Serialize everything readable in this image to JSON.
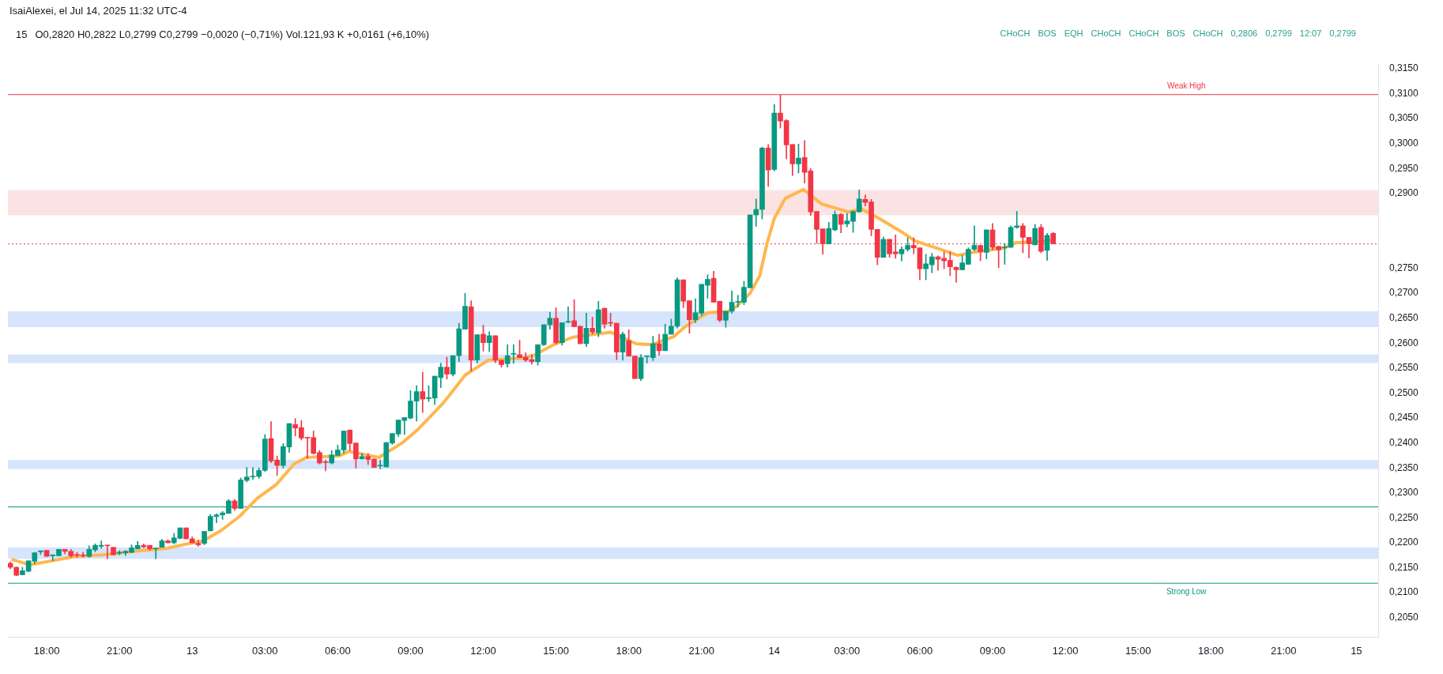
{
  "chart_data": {
    "type": "candlestick",
    "title": "15",
    "subtitle": "O0,2820 H0,2822 L0,2799 C0,2799 −0,0020 (−0,71%) Vol.121,93 K +0,0161 (+6,10%)",
    "x": [
      "2025-07-12T16:30",
      "2025-07-12T16:45",
      "2025-07-12T17:00",
      "2025-07-12T17:15",
      "2025-07-12T17:30",
      "2025-07-12T17:45",
      "2025-07-12T18:00",
      "2025-07-12T18:15",
      "2025-07-12T18:30",
      "2025-07-12T18:45",
      "2025-07-12T19:00",
      "2025-07-12T19:15",
      "2025-07-12T19:30",
      "2025-07-12T19:45",
      "2025-07-12T20:00",
      "2025-07-12T20:15",
      "2025-07-12T20:30",
      "2025-07-12T20:45",
      "2025-07-12T21:00",
      "2025-07-12T21:15",
      "2025-07-12T21:30",
      "2025-07-12T21:45",
      "2025-07-12T22:00",
      "2025-07-12T22:15",
      "2025-07-12T22:30",
      "2025-07-12T22:45",
      "2025-07-12T23:00",
      "2025-07-12T23:15",
      "2025-07-12T23:30",
      "2025-07-12T23:45",
      "2025-07-13T00:00",
      "2025-07-13T00:15",
      "2025-07-13T00:30",
      "2025-07-13T00:45",
      "2025-07-13T01:00",
      "2025-07-13T01:15",
      "2025-07-13T01:30",
      "2025-07-13T01:45",
      "2025-07-13T02:00",
      "2025-07-13T02:15",
      "2025-07-13T02:30",
      "2025-07-13T02:45",
      "2025-07-13T03:00",
      "2025-07-13T03:15",
      "2025-07-13T03:30",
      "2025-07-13T03:45",
      "2025-07-13T04:00",
      "2025-07-13T04:15",
      "2025-07-13T04:30",
      "2025-07-13T04:45",
      "2025-07-13T05:00",
      "2025-07-13T05:15",
      "2025-07-13T05:30",
      "2025-07-13T05:45",
      "2025-07-13T06:00",
      "2025-07-13T06:15",
      "2025-07-13T06:30",
      "2025-07-13T06:45",
      "2025-07-13T07:00",
      "2025-07-13T07:15",
      "2025-07-13T07:30",
      "2025-07-13T07:45",
      "2025-07-13T08:00",
      "2025-07-13T08:15",
      "2025-07-13T08:30",
      "2025-07-13T08:45",
      "2025-07-13T09:00",
      "2025-07-13T09:15",
      "2025-07-13T09:30",
      "2025-07-13T09:45",
      "2025-07-13T10:00",
      "2025-07-13T10:15",
      "2025-07-13T10:30",
      "2025-07-13T10:45",
      "2025-07-13T11:00",
      "2025-07-13T11:15",
      "2025-07-13T11:30",
      "2025-07-13T11:45",
      "2025-07-13T12:00",
      "2025-07-13T12:15",
      "2025-07-13T12:30",
      "2025-07-13T12:45",
      "2025-07-13T13:00",
      "2025-07-13T13:15",
      "2025-07-13T13:30",
      "2025-07-13T13:45",
      "2025-07-13T14:00",
      "2025-07-13T14:15",
      "2025-07-13T14:30",
      "2025-07-13T14:45",
      "2025-07-13T15:00",
      "2025-07-13T15:15",
      "2025-07-13T15:30",
      "2025-07-13T15:45",
      "2025-07-13T16:00",
      "2025-07-13T16:15",
      "2025-07-13T16:30",
      "2025-07-13T16:45",
      "2025-07-13T17:00",
      "2025-07-13T17:15",
      "2025-07-13T17:30",
      "2025-07-13T17:45",
      "2025-07-13T18:00",
      "2025-07-13T18:15",
      "2025-07-13T18:30",
      "2025-07-13T18:45",
      "2025-07-13T19:00",
      "2025-07-13T19:15",
      "2025-07-13T19:30",
      "2025-07-13T19:45",
      "2025-07-13T20:00",
      "2025-07-13T20:15",
      "2025-07-13T20:30",
      "2025-07-13T20:45",
      "2025-07-13T21:00",
      "2025-07-13T21:15",
      "2025-07-13T21:30",
      "2025-07-13T21:45",
      "2025-07-13T22:00",
      "2025-07-13T22:15",
      "2025-07-13T22:30",
      "2025-07-13T22:45",
      "2025-07-13T23:00",
      "2025-07-13T23:15",
      "2025-07-13T23:30",
      "2025-07-13T23:45",
      "2025-07-14T00:00",
      "2025-07-14T00:15",
      "2025-07-14T00:30",
      "2025-07-14T00:45",
      "2025-07-14T01:00",
      "2025-07-14T01:15",
      "2025-07-14T01:30",
      "2025-07-14T01:45",
      "2025-07-14T02:00",
      "2025-07-14T02:15",
      "2025-07-14T02:30",
      "2025-07-14T02:45",
      "2025-07-14T03:00",
      "2025-07-14T03:15",
      "2025-07-14T03:30",
      "2025-07-14T03:45",
      "2025-07-14T04:00",
      "2025-07-14T04:15",
      "2025-07-14T04:30",
      "2025-07-14T04:45",
      "2025-07-14T05:00",
      "2025-07-14T05:15",
      "2025-07-14T05:30",
      "2025-07-14T05:45",
      "2025-07-14T06:00",
      "2025-07-14T06:15",
      "2025-07-14T06:30",
      "2025-07-14T06:45",
      "2025-07-14T07:00",
      "2025-07-14T07:15",
      "2025-07-14T07:30",
      "2025-07-14T07:45",
      "2025-07-14T08:00",
      "2025-07-14T08:15",
      "2025-07-14T08:30",
      "2025-07-14T08:45",
      "2025-07-14T09:00",
      "2025-07-14T09:15",
      "2025-07-14T09:30",
      "2025-07-14T09:45",
      "2025-07-14T10:00",
      "2025-07-14T10:15",
      "2025-07-14T10:30",
      "2025-07-14T10:45",
      "2025-07-14T11:00",
      "2025-07-14T11:15",
      "2025-07-14T11:30"
    ],
    "ohlc": [
      [
        0.2159,
        0.2162,
        0.2148,
        0.2151
      ],
      [
        0.2151,
        0.2152,
        0.2134,
        0.2135
      ],
      [
        0.2136,
        0.2151,
        0.2136,
        0.2144
      ],
      [
        0.2143,
        0.2164,
        0.2142,
        0.2164
      ],
      [
        0.2163,
        0.2181,
        0.2158,
        0.218
      ],
      [
        0.2182,
        0.2184,
        0.2177,
        0.2184
      ],
      [
        0.2185,
        0.2185,
        0.2173,
        0.2173
      ],
      [
        0.2174,
        0.2176,
        0.2164,
        0.2176
      ],
      [
        0.2174,
        0.2187,
        0.2174,
        0.2187
      ],
      [
        0.2187,
        0.2187,
        0.2178,
        0.2183
      ],
      [
        0.2183,
        0.2187,
        0.2171,
        0.2174
      ],
      [
        0.2176,
        0.2181,
        0.2171,
        0.2175
      ],
      [
        0.2175,
        0.2181,
        0.2171,
        0.2174
      ],
      [
        0.2173,
        0.2194,
        0.2171,
        0.2187
      ],
      [
        0.2186,
        0.2198,
        0.2182,
        0.2195
      ],
      [
        0.2193,
        0.2204,
        0.2189,
        0.2195
      ],
      [
        0.2195,
        0.2195,
        0.2168,
        0.2194
      ],
      [
        0.2191,
        0.2191,
        0.2176,
        0.2176
      ],
      [
        0.2179,
        0.2184,
        0.2176,
        0.2181
      ],
      [
        0.218,
        0.2185,
        0.2175,
        0.2183
      ],
      [
        0.2181,
        0.2196,
        0.218,
        0.219
      ],
      [
        0.2188,
        0.2203,
        0.2188,
        0.2195
      ],
      [
        0.2195,
        0.2198,
        0.219,
        0.2192
      ],
      [
        0.2195,
        0.2195,
        0.2185,
        0.2188
      ],
      [
        0.2188,
        0.2189,
        0.2168,
        0.2189
      ],
      [
        0.2191,
        0.2207,
        0.2191,
        0.2204
      ],
      [
        0.2204,
        0.2206,
        0.22,
        0.22
      ],
      [
        0.22,
        0.2219,
        0.2198,
        0.221
      ],
      [
        0.2209,
        0.223,
        0.2208,
        0.223
      ],
      [
        0.223,
        0.223,
        0.2208,
        0.2208
      ],
      [
        0.2208,
        0.2212,
        0.22,
        0.22
      ],
      [
        0.2199,
        0.2206,
        0.2193,
        0.2196
      ],
      [
        0.2199,
        0.2223,
        0.2196,
        0.2223
      ],
      [
        0.2224,
        0.2257,
        0.2224,
        0.2253
      ],
      [
        0.2253,
        0.2258,
        0.224,
        0.2256
      ],
      [
        0.2256,
        0.2263,
        0.2247,
        0.226
      ],
      [
        0.2259,
        0.2287,
        0.2259,
        0.2284
      ],
      [
        0.2284,
        0.2287,
        0.2265,
        0.2269
      ],
      [
        0.2269,
        0.233,
        0.2269,
        0.2326
      ],
      [
        0.2325,
        0.2351,
        0.2322,
        0.2332
      ],
      [
        0.2332,
        0.2351,
        0.2327,
        0.2333
      ],
      [
        0.2333,
        0.235,
        0.2329,
        0.2345
      ],
      [
        0.2345,
        0.2417,
        0.2343,
        0.2408
      ],
      [
        0.2409,
        0.2443,
        0.2361,
        0.2364
      ],
      [
        0.2366,
        0.2374,
        0.2335,
        0.2355
      ],
      [
        0.2355,
        0.2399,
        0.235,
        0.2393
      ],
      [
        0.2392,
        0.2439,
        0.2381,
        0.2439
      ],
      [
        0.2437,
        0.2449,
        0.2414,
        0.243
      ],
      [
        0.2431,
        0.2445,
        0.2406,
        0.241
      ],
      [
        0.2411,
        0.2411,
        0.2369,
        0.241
      ],
      [
        0.2411,
        0.2424,
        0.2378,
        0.2379
      ],
      [
        0.2381,
        0.2385,
        0.2358,
        0.236
      ],
      [
        0.2362,
        0.2366,
        0.2344,
        0.2361
      ],
      [
        0.236,
        0.2385,
        0.2358,
        0.2376
      ],
      [
        0.2375,
        0.2396,
        0.2375,
        0.2386
      ],
      [
        0.2386,
        0.2424,
        0.238,
        0.2424
      ],
      [
        0.2426,
        0.2426,
        0.2385,
        0.2399
      ],
      [
        0.24,
        0.24,
        0.235,
        0.2368
      ],
      [
        0.2368,
        0.2379,
        0.2368,
        0.2373
      ],
      [
        0.2373,
        0.2379,
        0.2357,
        0.2367
      ],
      [
        0.2368,
        0.2368,
        0.2351,
        0.2351
      ],
      [
        0.2354,
        0.2366,
        0.2348,
        0.2355
      ],
      [
        0.2352,
        0.2401,
        0.2352,
        0.2401
      ],
      [
        0.24,
        0.2419,
        0.2397,
        0.2419
      ],
      [
        0.2418,
        0.2446,
        0.2413,
        0.2446
      ],
      [
        0.2445,
        0.2451,
        0.2417,
        0.2451
      ],
      [
        0.245,
        0.2505,
        0.2448,
        0.2484
      ],
      [
        0.2484,
        0.2515,
        0.2444,
        0.2503
      ],
      [
        0.2503,
        0.2542,
        0.2461,
        0.2488
      ],
      [
        0.2489,
        0.2515,
        0.2483,
        0.2491
      ],
      [
        0.249,
        0.2534,
        0.2477,
        0.2534
      ],
      [
        0.2531,
        0.256,
        0.2511,
        0.2552
      ],
      [
        0.2552,
        0.2572,
        0.2528,
        0.2538
      ],
      [
        0.2538,
        0.2575,
        0.2534,
        0.2575
      ],
      [
        0.2575,
        0.264,
        0.2563,
        0.2629
      ],
      [
        0.2628,
        0.27,
        0.2628,
        0.2674
      ],
      [
        0.2673,
        0.2685,
        0.2544,
        0.2566
      ],
      [
        0.2566,
        0.2617,
        0.256,
        0.2617
      ],
      [
        0.2618,
        0.2636,
        0.2584,
        0.2601
      ],
      [
        0.2601,
        0.2623,
        0.2583,
        0.2615
      ],
      [
        0.2615,
        0.2615,
        0.2561,
        0.2566
      ],
      [
        0.2566,
        0.2566,
        0.2552,
        0.2557
      ],
      [
        0.2559,
        0.2597,
        0.2552,
        0.2575
      ],
      [
        0.2578,
        0.2597,
        0.256,
        0.2579
      ],
      [
        0.2577,
        0.2606,
        0.2571,
        0.2571
      ],
      [
        0.2572,
        0.2581,
        0.2563,
        0.2566
      ],
      [
        0.2567,
        0.2577,
        0.2558,
        0.2563
      ],
      [
        0.2563,
        0.2597,
        0.2556,
        0.2597
      ],
      [
        0.2597,
        0.2637,
        0.2595,
        0.2637
      ],
      [
        0.2637,
        0.2662,
        0.2628,
        0.265
      ],
      [
        0.265,
        0.2671,
        0.2598,
        0.2601
      ],
      [
        0.2601,
        0.2641,
        0.2596,
        0.2641
      ],
      [
        0.2642,
        0.2673,
        0.2641,
        0.2643
      ],
      [
        0.2645,
        0.2687,
        0.2633,
        0.2633
      ],
      [
        0.2634,
        0.2634,
        0.2599,
        0.2599
      ],
      [
        0.2599,
        0.266,
        0.2593,
        0.263
      ],
      [
        0.263,
        0.2652,
        0.2618,
        0.2622
      ],
      [
        0.2621,
        0.2684,
        0.2613,
        0.2667
      ],
      [
        0.267,
        0.267,
        0.263,
        0.2638
      ],
      [
        0.2641,
        0.266,
        0.2634,
        0.264
      ],
      [
        0.264,
        0.264,
        0.2567,
        0.2582
      ],
      [
        0.2582,
        0.2622,
        0.2566,
        0.2618
      ],
      [
        0.2605,
        0.2627,
        0.2574,
        0.2574
      ],
      [
        0.2574,
        0.2574,
        0.2529,
        0.2529
      ],
      [
        0.2529,
        0.2577,
        0.2525,
        0.2571
      ],
      [
        0.2573,
        0.2574,
        0.256,
        0.2574
      ],
      [
        0.2571,
        0.2614,
        0.2565,
        0.2599
      ],
      [
        0.2599,
        0.2618,
        0.2576,
        0.2585
      ],
      [
        0.2585,
        0.2638,
        0.2585,
        0.2618
      ],
      [
        0.2618,
        0.2648,
        0.2618,
        0.2634
      ],
      [
        0.2634,
        0.2731,
        0.263,
        0.2727
      ],
      [
        0.2727,
        0.2727,
        0.2671,
        0.2684
      ],
      [
        0.2685,
        0.2685,
        0.262,
        0.2647
      ],
      [
        0.2647,
        0.2689,
        0.2641,
        0.2661
      ],
      [
        0.266,
        0.2718,
        0.2655,
        0.2718
      ],
      [
        0.2716,
        0.2737,
        0.269,
        0.2728
      ],
      [
        0.273,
        0.2744,
        0.2682,
        0.2682
      ],
      [
        0.2684,
        0.2684,
        0.2643,
        0.2646
      ],
      [
        0.2646,
        0.2664,
        0.2632,
        0.2664
      ],
      [
        0.2664,
        0.2705,
        0.266,
        0.2682
      ],
      [
        0.2682,
        0.2696,
        0.2672,
        0.2683
      ],
      [
        0.2682,
        0.2724,
        0.2677,
        0.2712
      ],
      [
        0.2711,
        0.2857,
        0.2711,
        0.2857
      ],
      [
        0.2857,
        0.2889,
        0.2834,
        0.2868
      ],
      [
        0.2868,
        0.2993,
        0.2849,
        0.2991
      ],
      [
        0.2991,
        0.2998,
        0.2914,
        0.2947
      ],
      [
        0.2948,
        0.3078,
        0.2945,
        0.3061
      ],
      [
        0.3061,
        0.3097,
        0.3031,
        0.3045
      ],
      [
        0.3046,
        0.3048,
        0.2969,
        0.2997
      ],
      [
        0.2998,
        0.2998,
        0.2936,
        0.2959
      ],
      [
        0.2959,
        0.2999,
        0.2941,
        0.2971
      ],
      [
        0.2972,
        0.3006,
        0.2921,
        0.2942
      ],
      [
        0.2945,
        0.295,
        0.2856,
        0.2863
      ],
      [
        0.2864,
        0.2864,
        0.28,
        0.2828
      ],
      [
        0.2829,
        0.2829,
        0.2778,
        0.2799
      ],
      [
        0.2799,
        0.2842,
        0.2799,
        0.283
      ],
      [
        0.2827,
        0.2865,
        0.2825,
        0.2858
      ],
      [
        0.2858,
        0.286,
        0.2821,
        0.2838
      ],
      [
        0.2839,
        0.286,
        0.2833,
        0.2845
      ],
      [
        0.2844,
        0.2865,
        0.2822,
        0.2864
      ],
      [
        0.2863,
        0.2907,
        0.2863,
        0.2889
      ],
      [
        0.2888,
        0.2897,
        0.2875,
        0.2882
      ],
      [
        0.2883,
        0.2888,
        0.2815,
        0.2828
      ],
      [
        0.2828,
        0.2828,
        0.2757,
        0.2772
      ],
      [
        0.2772,
        0.2813,
        0.2772,
        0.2808
      ],
      [
        0.2808,
        0.2808,
        0.2772,
        0.2779
      ],
      [
        0.2783,
        0.2817,
        0.277,
        0.2779
      ],
      [
        0.2779,
        0.2793,
        0.2765,
        0.2788
      ],
      [
        0.2788,
        0.2811,
        0.2784,
        0.2796
      ],
      [
        0.2796,
        0.2811,
        0.2779,
        0.2791
      ],
      [
        0.2791,
        0.2791,
        0.2727,
        0.2749
      ],
      [
        0.2749,
        0.2778,
        0.2727,
        0.2759
      ],
      [
        0.2757,
        0.278,
        0.2741,
        0.2773
      ],
      [
        0.2773,
        0.2775,
        0.2746,
        0.2768
      ],
      [
        0.277,
        0.2783,
        0.2749,
        0.2765
      ],
      [
        0.2766,
        0.2783,
        0.2735,
        0.2753
      ],
      [
        0.2752,
        0.2753,
        0.2722,
        0.2747
      ],
      [
        0.2747,
        0.2776,
        0.2747,
        0.2761
      ],
      [
        0.2758,
        0.2791,
        0.2758,
        0.2788
      ],
      [
        0.2788,
        0.2835,
        0.2785,
        0.2796
      ],
      [
        0.2796,
        0.2796,
        0.2765,
        0.2783
      ],
      [
        0.2782,
        0.2827,
        0.2769,
        0.2827
      ],
      [
        0.2827,
        0.284,
        0.2787,
        0.2792
      ],
      [
        0.2794,
        0.2794,
        0.2751,
        0.2787
      ],
      [
        0.2791,
        0.28,
        0.2758,
        0.2792
      ],
      [
        0.2792,
        0.2835,
        0.2792,
        0.2832
      ],
      [
        0.2832,
        0.2864,
        0.283,
        0.2835
      ],
      [
        0.2835,
        0.284,
        0.2781,
        0.2812
      ],
      [
        0.2812,
        0.2812,
        0.2771,
        0.2799
      ],
      [
        0.2797,
        0.2838,
        0.2797,
        0.283
      ],
      [
        0.2832,
        0.2838,
        0.2781,
        0.2784
      ],
      [
        0.2786,
        0.282,
        0.2766,
        0.2816
      ],
      [
        0.282,
        0.2822,
        0.2799,
        0.2799
      ]
    ],
    "colors": [
      "#f23645",
      "#f23645",
      "#089981",
      "#089981",
      "#089981",
      "#089981",
      "#f23645",
      "#089981",
      "#089981",
      "#f23645",
      "#f23645",
      "#f23645",
      "#f23645",
      "#089981",
      "#089981",
      "#089981",
      "#f23645",
      "#f23645",
      "#089981",
      "#089981",
      "#089981",
      "#089981",
      "#f23645",
      "#f23645",
      "#089981",
      "#089981",
      "#f23645",
      "#089981",
      "#089981",
      "#f23645",
      "#f23645",
      "#f23645",
      "#089981",
      "#089981",
      "#089981",
      "#089981",
      "#089981",
      "#f23645",
      "#089981",
      "#089981",
      "#089981",
      "#089981",
      "#089981",
      "#f23645",
      "#f23645",
      "#089981",
      "#089981",
      "#f23645",
      "#f23645",
      "#f23645",
      "#f23645",
      "#f23645",
      "#f23645",
      "#089981",
      "#089981",
      "#089981",
      "#f23645",
      "#f23645",
      "#089981",
      "#f23645",
      "#f23645",
      "#089981",
      "#089981",
      "#089981",
      "#089981",
      "#089981",
      "#089981",
      "#089981",
      "#f23645",
      "#089981",
      "#089981",
      "#089981",
      "#f23645",
      "#089981",
      "#089981",
      "#089981",
      "#f23645",
      "#089981",
      "#f23645",
      "#089981",
      "#f23645",
      "#f23645",
      "#089981",
      "#089981",
      "#f23645",
      "#f23645",
      "#f23645",
      "#089981",
      "#089981",
      "#089981",
      "#f23645",
      "#089981",
      "#089981",
      "#f23645",
      "#f23645",
      "#089981",
      "#f23645",
      "#089981",
      "#f23645",
      "#f23645",
      "#f23645",
      "#089981",
      "#f23645",
      "#f23645",
      "#089981",
      "#089981",
      "#089981",
      "#f23645",
      "#089981",
      "#089981",
      "#089981",
      "#f23645",
      "#f23645",
      "#089981",
      "#089981",
      "#089981",
      "#f23645",
      "#f23645",
      "#089981",
      "#089981",
      "#089981",
      "#089981",
      "#089981",
      "#089981",
      "#089981",
      "#f23645",
      "#089981",
      "#f23645",
      "#f23645",
      "#f23645",
      "#089981",
      "#f23645",
      "#f23645",
      "#f23645",
      "#f23645",
      "#089981",
      "#089981",
      "#f23645",
      "#089981",
      "#089981",
      "#089981",
      "#f23645",
      "#f23645",
      "#f23645",
      "#089981",
      "#f23645",
      "#f23645",
      "#089981",
      "#089981",
      "#f23645",
      "#f23645",
      "#089981",
      "#089981",
      "#f23645",
      "#f23645",
      "#f23645",
      "#f23645",
      "#089981",
      "#089981",
      "#089981",
      "#f23645",
      "#089981",
      "#f23645",
      "#f23645",
      "#089981",
      "#089981",
      "#089981",
      "#f23645",
      "#f23645",
      "#089981",
      "#f23645",
      "#089981",
      "#f23645"
    ],
    "series": [
      {
        "type": "line",
        "color": "#ffb74d",
        "x": [
          "2025-07-12T16:33",
          "2025-07-12T17:18",
          "2025-07-12T18:06",
          "2025-07-12T19:12",
          "2025-07-12T20:18",
          "2025-07-12T21:48",
          "2025-07-12T22:57",
          "2025-07-12T23:42",
          "2025-07-13T00:27",
          "2025-07-13T01:12",
          "2025-07-13T01:57",
          "2025-07-13T02:42",
          "2025-07-13T03:27",
          "2025-07-13T04:12",
          "2025-07-13T04:42",
          "2025-07-13T06:03",
          "2025-07-13T06:27",
          "2025-07-13T07:42",
          "2025-07-13T08:39",
          "2025-07-13T09:18",
          "2025-07-13T10:21",
          "2025-07-13T11:15",
          "2025-07-13T12:12",
          "2025-07-13T13:36",
          "2025-07-13T14:06",
          "2025-07-13T14:54",
          "2025-07-13T15:42",
          "2025-07-13T17:15",
          "2025-07-13T18:18",
          "2025-07-13T18:57",
          "2025-07-13T19:51",
          "2025-07-13T20:21",
          "2025-07-13T21:15",
          "2025-07-13T22:06",
          "2025-07-13T22:27",
          "2025-07-13T23:00",
          "2025-07-13T23:24",
          "2025-07-13T23:42",
          "2025-07-14T00:00",
          "2025-07-14T00:27",
          "2025-07-14T01:12",
          "2025-07-14T01:57",
          "2025-07-14T03:03",
          "2025-07-14T03:36",
          "2025-07-14T04:21",
          "2025-07-14T05:15",
          "2025-07-14T05:48",
          "2025-07-14T07:09",
          "2025-07-14T07:33",
          "2025-07-14T08:12",
          "2025-07-14T09:30",
          "2025-07-14T09:57",
          "2025-07-14T11:27"
        ],
        "values": [
          0.2167,
          0.2156,
          0.2163,
          0.2173,
          0.2176,
          0.2184,
          0.2189,
          0.2197,
          0.2204,
          0.2225,
          0.2253,
          0.229,
          0.2316,
          0.2358,
          0.2371,
          0.2374,
          0.2383,
          0.2371,
          0.24,
          0.2427,
          0.248,
          0.2536,
          0.2566,
          0.257,
          0.2576,
          0.2597,
          0.2612,
          0.2622,
          0.2599,
          0.2597,
          0.2613,
          0.2634,
          0.2661,
          0.2663,
          0.2674,
          0.27,
          0.2735,
          0.28,
          0.285,
          0.289,
          0.2908,
          0.2879,
          0.2863,
          0.2869,
          0.2849,
          0.2823,
          0.2805,
          0.2783,
          0.2776,
          0.2782,
          0.2791,
          0.2801,
          0.2806
        ]
      }
    ],
    "xlim": [
      "2025-07-12T16:24",
      "2025-07-15T00:54"
    ],
    "xticks": [
      {
        "value": "2025-07-12T18:00",
        "label": "18:00"
      },
      {
        "value": "2025-07-12T21:00",
        "label": "21:00"
      },
      {
        "value": "2025-07-13T00:00",
        "label": "13"
      },
      {
        "value": "2025-07-13T03:00",
        "label": "03:00"
      },
      {
        "value": "2025-07-13T06:00",
        "label": "06:00"
      },
      {
        "value": "2025-07-13T09:00",
        "label": "09:00"
      },
      {
        "value": "2025-07-13T12:00",
        "label": "12:00"
      },
      {
        "value": "2025-07-13T15:00",
        "label": "15:00"
      },
      {
        "value": "2025-07-13T18:00",
        "label": "18:00"
      },
      {
        "value": "2025-07-13T21:00",
        "label": "21:00"
      },
      {
        "value": "2025-07-14T00:00",
        "label": "14"
      },
      {
        "value": "2025-07-14T03:00",
        "label": "03:00"
      },
      {
        "value": "2025-07-14T06:00",
        "label": "06:00"
      },
      {
        "value": "2025-07-14T09:00",
        "label": "09:00"
      },
      {
        "value": "2025-07-14T12:00",
        "label": "12:00"
      },
      {
        "value": "2025-07-14T15:00",
        "label": "15:00"
      },
      {
        "value": "2025-07-14T18:00",
        "label": "18:00"
      },
      {
        "value": "2025-07-14T21:00",
        "label": "21:00"
      },
      {
        "value": "2025-07-15T00:00",
        "label": "15"
      }
    ],
    "ylim": [
      0.2011,
      0.3159
    ],
    "yticks": [
      {
        "value": 0.205,
        "label": "0,2050"
      },
      {
        "value": 0.21,
        "label": "0,2100"
      },
      {
        "value": 0.215,
        "label": "0,2150"
      },
      {
        "value": 0.22,
        "label": "0,2200"
      },
      {
        "value": 0.225,
        "label": "0,2250"
      },
      {
        "value": 0.23,
        "label": "0,2300"
      },
      {
        "value": 0.235,
        "label": "0,2350"
      },
      {
        "value": 0.24,
        "label": "0,2400"
      },
      {
        "value": 0.245,
        "label": "0,2450"
      },
      {
        "value": 0.25,
        "label": "0,2500"
      },
      {
        "value": 0.255,
        "label": "0,2550"
      },
      {
        "value": 0.26,
        "label": "0,2600"
      },
      {
        "value": 0.265,
        "label": "0,2650"
      },
      {
        "value": 0.27,
        "label": "0,2700"
      },
      {
        "value": 0.275,
        "label": "0,2750"
      },
      {
        "value": 0.29,
        "label": "0,2900"
      },
      {
        "value": 0.295,
        "label": "0,2950"
      },
      {
        "value": 0.3,
        "label": "0,3000"
      },
      {
        "value": 0.305,
        "label": "0,3050"
      },
      {
        "value": 0.31,
        "label": "0,3100"
      },
      {
        "value": 0.315,
        "label": "0,3150"
      }
    ],
    "bands": [
      {
        "axis": "y",
        "from": 0.2856,
        "to": 0.2907,
        "color": "#fbe3e4"
      },
      {
        "axis": "y",
        "from": 0.2632,
        "to": 0.2664,
        "color": "#d6e4fc"
      },
      {
        "axis": "y",
        "from": 0.256,
        "to": 0.2577,
        "color": "#d6e4fc"
      },
      {
        "axis": "y",
        "from": 0.2348,
        "to": 0.2366,
        "color": "#d6e4fc"
      },
      {
        "axis": "y",
        "from": 0.2168,
        "to": 0.2191,
        "color": "#d6e4fc"
      }
    ],
    "ref_lines": [
      {
        "axis": "y",
        "value": 0.3098,
        "label": "Weak High",
        "color": "#f23645",
        "line_style": "solid"
      },
      {
        "axis": "y",
        "value": 0.2119,
        "label": "Strong Low",
        "color": "#089981",
        "line_style": "solid"
      },
      {
        "axis": "y",
        "value": 0.2272,
        "color": "#089981",
        "line_style": "solid"
      },
      {
        "axis": "y",
        "value": 0.2799,
        "color": "#f23645",
        "line_style": "dotted"
      }
    ],
    "annotations": [
      "IsaiAlexei, el Jul 14, 2025 11:32 UTC-4",
      "CHoCH",
      "BOS",
      "EQH",
      "CHoCH",
      "CHoCH",
      "BOS",
      "CHoCH",
      "0,2806",
      "0,2799",
      "12:07",
      "0,2799"
    ],
    "grid": false,
    "legend": false
  }
}
